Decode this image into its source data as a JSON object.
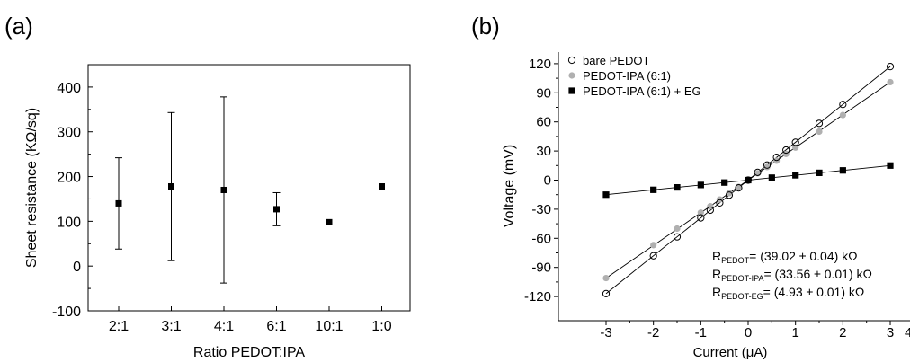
{
  "chart_data": [
    {
      "panel_label": "(a)",
      "type": "scatter",
      "xlabel": "Ratio PEDOT:IPA",
      "ylabel": "Sheet resistance (KΩ/sq)",
      "categories": [
        "2:1",
        "3:1",
        "4:1",
        "6:1",
        "10:1",
        "1:0"
      ],
      "ylim": [
        -100,
        450
      ],
      "yticks": [
        -100,
        0,
        100,
        200,
        300,
        400
      ],
      "series": [
        {
          "values": [
            140,
            178,
            170,
            127,
            98,
            178
          ],
          "error_low": [
            38,
            12,
            -38,
            90,
            null,
            null
          ],
          "error_high": [
            242,
            343,
            378,
            164,
            null,
            null
          ]
        }
      ],
      "grid": false,
      "legend": "none"
    },
    {
      "panel_label": "(b)",
      "type": "scatter",
      "xlabel": "Current (μA)",
      "ylabel": "Voltage (mV)",
      "xlim": [
        -3.5,
        4
      ],
      "ylim": [
        -130,
        130
      ],
      "xticks": [
        -3,
        -2,
        -1,
        0,
        1,
        2,
        3
      ],
      "yticks": [
        -120,
        -90,
        -60,
        -30,
        0,
        30,
        60,
        90,
        120
      ],
      "legend_position": "top-left",
      "series": [
        {
          "name": "bare PEDOT",
          "marker": "open-circle",
          "color": "#000000",
          "x": [
            -3,
            -2,
            -1.5,
            -1,
            -0.8,
            -0.6,
            -0.4,
            -0.2,
            0,
            0.2,
            0.4,
            0.6,
            0.8,
            1,
            1.5,
            2,
            3
          ],
          "y": [
            -117,
            -78,
            -58.5,
            -39,
            -31,
            -23.5,
            -15.5,
            -8,
            0,
            8,
            15.5,
            23.5,
            31,
            39,
            58.5,
            78,
            117
          ]
        },
        {
          "name": "PEDOT-IPA (6:1)",
          "marker": "filled-circle",
          "color": "#b0b0b0",
          "x": [
            -3,
            -2,
            -1.5,
            -1,
            -0.8,
            -0.6,
            -0.4,
            -0.2,
            0,
            0.2,
            0.4,
            0.6,
            0.8,
            1,
            1.5,
            2,
            3
          ],
          "y": [
            -101,
            -67,
            -50,
            -33.5,
            -27,
            -20,
            -13.5,
            -7,
            0,
            7,
            13.5,
            20,
            27,
            33.5,
            50,
            67,
            101
          ]
        },
        {
          "name": "PEDOT-IPA (6:1) + EG",
          "marker": "filled-square",
          "color": "#000000",
          "x": [
            -3,
            -2,
            -1.5,
            -1,
            -0.5,
            0,
            0.5,
            1,
            1.5,
            2,
            3
          ],
          "y": [
            -15,
            -10,
            -7.5,
            -5,
            -2.5,
            0,
            2.5,
            5,
            7.5,
            10,
            15
          ]
        }
      ],
      "annotations": [
        {
          "prefix": "R",
          "sub": "PEDOT",
          "text": "= (39.02 ± 0.04) kΩ"
        },
        {
          "prefix": "R",
          "sub": "PEDOT-IPA",
          "text": "= (33.56 ± 0.01) kΩ"
        },
        {
          "prefix": "R",
          "sub": "PEDOT-EG",
          "text": "= (4.93 ± 0.01) kΩ"
        }
      ],
      "partial_tick_label": "4"
    }
  ]
}
